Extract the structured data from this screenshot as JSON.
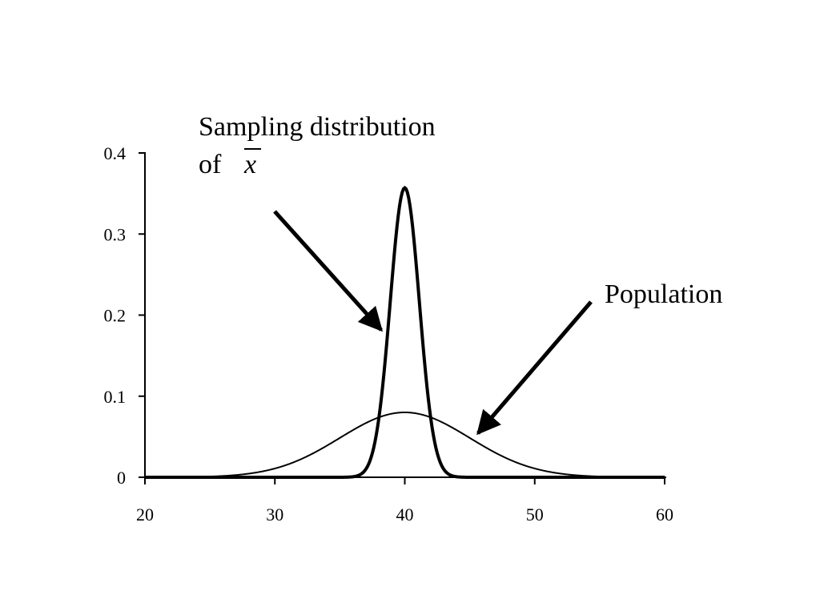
{
  "chart_data": {
    "type": "line",
    "xlim": [
      20,
      60
    ],
    "ylim": [
      0,
      0.4
    ],
    "x_ticks": [
      "20",
      "30",
      "40",
      "50",
      "60"
    ],
    "y_ticks": [
      "0",
      "0.1",
      "0.2",
      "0.3",
      "0.4"
    ],
    "grid": false,
    "series": [
      {
        "name": "Sampling distribution of x̄",
        "mean": 40,
        "sd": 1.12,
        "peak": 0.357,
        "color": "#000000"
      },
      {
        "name": "Population",
        "mean": 40,
        "sd": 5,
        "peak": 0.08,
        "color": "#000000"
      }
    ],
    "annotations": {
      "sampling_line1": "Sampling distribution",
      "sampling_line2": "of",
      "sampling_var": "x",
      "population": "Population"
    }
  }
}
